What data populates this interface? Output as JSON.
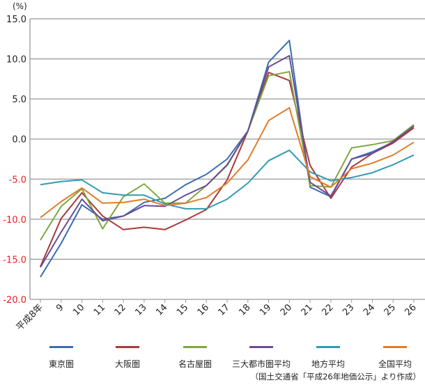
{
  "chart_data": {
    "type": "line",
    "title": "",
    "ylabel": "(%)",
    "xlabel": "",
    "ylim": [
      -20,
      15
    ],
    "yticks": [
      "15.0",
      "10.0",
      "5.0",
      "0.0",
      "-5.0",
      "-10.0",
      "-15.0",
      "-20.0"
    ],
    "ytick_values": [
      15,
      10,
      5,
      0,
      -5,
      -10,
      -15,
      -20
    ],
    "negative_tick_color": "#e0241c",
    "grid": true,
    "categories": [
      "平成8年",
      "9",
      "10",
      "11",
      "12",
      "13",
      "14",
      "15",
      "16",
      "17",
      "18",
      "19",
      "20",
      "21",
      "22",
      "23",
      "24",
      "25",
      "26"
    ],
    "series": [
      {
        "name": "東京圏",
        "color": "#3a6ead",
        "values": [
          -17.2,
          -13.0,
          -8.2,
          -10.0,
          -9.6,
          -7.9,
          -7.4,
          -5.7,
          -4.4,
          -2.5,
          1.0,
          9.6,
          12.3,
          -6.0,
          -7.2,
          -2.5,
          -1.6,
          -0.4,
          1.7
        ]
      },
      {
        "name": "大阪圏",
        "color": "#a83a3a",
        "values": [
          -15.9,
          -9.9,
          -6.7,
          -9.6,
          -11.3,
          -11.0,
          -11.3,
          -10.1,
          -8.8,
          -5.1,
          1.0,
          8.3,
          7.3,
          -3.3,
          -7.4,
          -3.5,
          -1.8,
          -0.5,
          1.4
        ]
      },
      {
        "name": "名古屋圏",
        "color": "#7ea83e",
        "values": [
          -12.6,
          -8.4,
          -6.2,
          -11.2,
          -7.2,
          -5.6,
          -8.0,
          -8.0,
          -5.8,
          -3.3,
          1.0,
          7.9,
          8.4,
          -5.8,
          -6.0,
          -1.1,
          -0.7,
          -0.2,
          1.8
        ]
      },
      {
        "name": "三大都市圏平均",
        "color": "#6a4c96",
        "values": [
          -16.0,
          -11.6,
          -7.5,
          -10.2,
          -9.6,
          -8.3,
          -8.4,
          -7.0,
          -5.8,
          -3.2,
          1.0,
          9.0,
          10.4,
          -5.4,
          -7.1,
          -2.5,
          -1.8,
          -0.3,
          1.6
        ]
      },
      {
        "name": "地方平均",
        "color": "#2f9bb3",
        "values": [
          -5.7,
          -5.3,
          -5.1,
          -6.7,
          -7.0,
          -7.0,
          -8.1,
          -8.7,
          -8.7,
          -7.5,
          -5.5,
          -2.7,
          -1.4,
          -4.1,
          -5.2,
          -4.8,
          -4.2,
          -3.2,
          -2.0
        ]
      },
      {
        "name": "全国平均",
        "color": "#e07b2a",
        "values": [
          -9.8,
          -7.8,
          -6.1,
          -8.0,
          -7.9,
          -7.5,
          -8.3,
          -8.0,
          -7.3,
          -5.5,
          -2.6,
          2.3,
          3.9,
          -4.7,
          -6.0,
          -3.7,
          -3.0,
          -2.0,
          -0.4
        ]
      }
    ],
    "legend_position": "bottom",
    "source_note": "（国土交通省「平成26年地価公示」より作成）"
  }
}
